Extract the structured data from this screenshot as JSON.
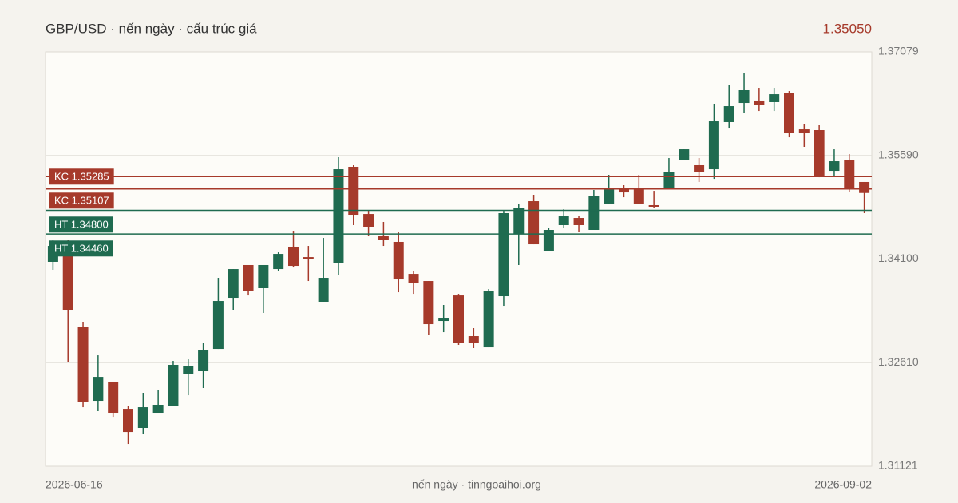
{
  "chart_data": {
    "type": "candlestick",
    "title": "GBP/USD · nến ngày · cấu trúc giá",
    "last_price": "1.35050",
    "footer": "nến ngày · tinngoaihoi.org",
    "categories": [
      "2026-06-16",
      null,
      null,
      null,
      null,
      null,
      null,
      null,
      null,
      null,
      null,
      null,
      null,
      null,
      null,
      null,
      null,
      null,
      null,
      null,
      null,
      null,
      null,
      null,
      null,
      null,
      null,
      null,
      null,
      null,
      null,
      null,
      null,
      null,
      null,
      null,
      null,
      null,
      null,
      null,
      null,
      null,
      null,
      null,
      null,
      null,
      null,
      null,
      null,
      null,
      null,
      null,
      null,
      null,
      "2026-09-02"
    ],
    "open": [
      1.3406,
      1.34335,
      1.3313,
      1.32062,
      1.32338,
      1.31947,
      1.31672,
      1.3189,
      1.31982,
      1.32452,
      1.32487,
      1.32808,
      1.33543,
      1.34014,
      1.33681,
      1.33956,
      1.34278,
      1.34128,
      1.33486,
      1.34048,
      1.35426,
      1.34748,
      1.34427,
      1.34347,
      1.33887,
      1.33784,
      1.3321,
      1.33577,
      1.32992,
      1.32831,
      1.33566,
      1.34461,
      1.34932,
      1.34209,
      1.34588,
      1.34691,
      1.34519,
      1.34898,
      1.35127,
      1.35104,
      1.34875,
      1.35104,
      1.35529,
      1.35449,
      1.35391,
      1.36069,
      1.36344,
      1.36379,
      1.36356,
      1.36482,
      1.35965,
      1.35954,
      1.35368,
      1.35529,
      1.35208
    ],
    "high": [
      1.34381,
      1.34381,
      1.33199,
      1.32716,
      1.32338,
      1.31993,
      1.32177,
      1.32223,
      1.32636,
      1.32659,
      1.32889,
      1.3383,
      1.33956,
      1.34014,
      1.34014,
      1.34197,
      1.34507,
      1.34289,
      1.34404,
      1.35563,
      1.35449,
      1.34794,
      1.34634,
      1.34484,
      1.33922,
      1.33784,
      1.3344,
      1.336,
      1.33107,
      1.33669,
      1.34794,
      1.34898,
      1.35024,
      1.34553,
      1.34817,
      1.34725,
      1.35093,
      1.35311,
      1.35162,
      1.35311,
      1.35081,
      1.35552,
      1.35678,
      1.35552,
      1.36333,
      1.36608,
      1.3678,
      1.36562,
      1.36562,
      1.36516,
      1.36046,
      1.36034,
      1.35678,
      1.35609,
      1.35208
    ],
    "low": [
      1.33945,
      1.32625,
      1.3197,
      1.31913,
      1.31832,
      1.31442,
      1.3158,
      1.3189,
      1.31982,
      1.32142,
      1.32246,
      1.32808,
      1.33371,
      1.33577,
      1.33325,
      1.33922,
      1.33979,
      1.33784,
      1.33486,
      1.33864,
      1.34588,
      1.34427,
      1.34289,
      1.33623,
      1.336,
      1.33015,
      1.33049,
      1.32866,
      1.3282,
      1.32831,
      1.33428,
      1.34014,
      1.34312,
      1.34209,
      1.34553,
      1.34496,
      1.34519,
      1.34898,
      1.34989,
      1.34898,
      1.3484,
      1.35104,
      1.35529,
      1.35208,
      1.35253,
      1.35988,
      1.36206,
      1.36229,
      1.36229,
      1.3585,
      1.35713,
      1.35276,
      1.35299,
      1.3507,
      1.3476
    ],
    "close": [
      1.34289,
      1.33371,
      1.32051,
      1.32406,
      1.3189,
      1.31614,
      1.3197,
      1.32005,
      1.32579,
      1.32556,
      1.32797,
      1.33497,
      1.33956,
      1.33646,
      1.34014,
      1.34174,
      1.34002,
      1.34105,
      1.3383,
      1.35391,
      1.34737,
      1.34565,
      1.3437,
      1.33807,
      1.3375,
      1.33164,
      1.33256,
      1.32889,
      1.32889,
      1.33635,
      1.3476,
      1.34829,
      1.34312,
      1.34519,
      1.34714,
      1.34588,
      1.35012,
      1.35104,
      1.35058,
      1.34898,
      1.34852,
      1.35357,
      1.35678,
      1.35357,
      1.3608,
      1.36298,
      1.36528,
      1.36321,
      1.3647,
      1.35908,
      1.35908,
      1.35299,
      1.35506,
      1.35127,
      1.3505
    ],
    "up_color": "#1f6b50",
    "down_color": "#a63a2b",
    "ylim": [
      1.31121,
      1.37079
    ],
    "yticks": [
      1.31121,
      {
        "value": 1.3261,
        "label": "1.32610"
      },
      {
        "value": 1.341,
        "label": "1.34100"
      },
      {
        "value": 1.3559,
        "label": "1.35590"
      },
      1.37079
    ],
    "grid": true,
    "levels": [
      {
        "label": "KC 1.35285",
        "value": 1.35285,
        "color": "#a63a2b"
      },
      {
        "label": "KC 1.35107",
        "value": 1.35107,
        "color": "#a63a2b"
      },
      {
        "label": "HT 1.34800",
        "value": 1.348,
        "color": "#1f6b50"
      },
      {
        "label": "HT 1.34460",
        "value": 1.3446,
        "color": "#1f6b50"
      }
    ]
  }
}
